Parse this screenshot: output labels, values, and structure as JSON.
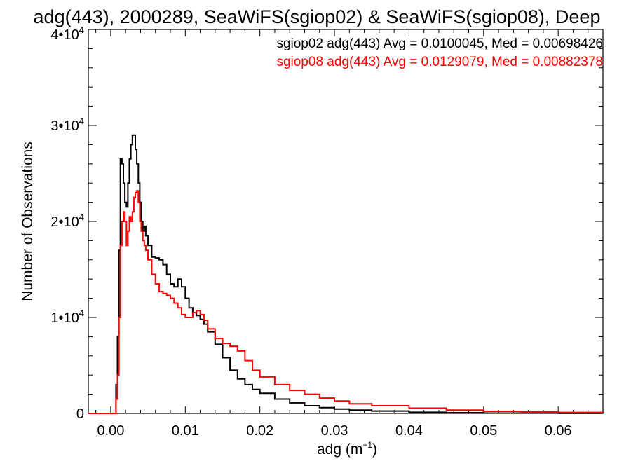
{
  "chart_data": {
    "type": "line",
    "title": "adg(443), 2000289, SeaWiFS(sgiop02) & SeaWiFS(sgiop08), Deep",
    "xlabel_main": "adg (m",
    "xlabel_exp": "−1",
    "xlabel_close": ")",
    "ylabel": "Number of Observations",
    "xlim": [
      -0.003,
      0.066
    ],
    "ylim": [
      0,
      40000
    ],
    "x_ticks": [
      0.0,
      0.01,
      0.02,
      0.03,
      0.04,
      0.05,
      0.06
    ],
    "x_tick_labels": [
      "0.00",
      "0.01",
      "0.02",
      "0.03",
      "0.04",
      "0.05",
      "0.06"
    ],
    "y_ticks": [
      0,
      10000,
      20000,
      30000,
      40000
    ],
    "y_tick_labels": [
      {
        "mant": "0",
        "exp": ""
      },
      {
        "mant": "1•10",
        "exp": "4"
      },
      {
        "mant": "2•10",
        "exp": "4"
      },
      {
        "mant": "3•10",
        "exp": "4"
      },
      {
        "mant": "4•10",
        "exp": "4"
      }
    ],
    "grid": false,
    "legend_placement": "top-right",
    "series": [
      {
        "name": "sgiop02",
        "legend_text": "sgiop02 adg(443) Avg = 0.0100045, Med = 0.00698426",
        "color": "#000000",
        "points": [
          [
            -0.003,
            0
          ],
          [
            0.0005,
            0
          ],
          [
            0.0007,
            3000
          ],
          [
            0.0009,
            8000
          ],
          [
            0.0011,
            17000
          ],
          [
            0.0013,
            26500
          ],
          [
            0.0015,
            26000
          ],
          [
            0.0017,
            24000
          ],
          [
            0.0019,
            22000
          ],
          [
            0.0021,
            21500
          ],
          [
            0.0023,
            24000
          ],
          [
            0.0025,
            26500
          ],
          [
            0.0027,
            28000
          ],
          [
            0.0029,
            29000
          ],
          [
            0.0031,
            29000
          ],
          [
            0.0033,
            27500
          ],
          [
            0.0035,
            26000
          ],
          [
            0.0037,
            24000
          ],
          [
            0.0039,
            22000
          ],
          [
            0.0041,
            20000
          ],
          [
            0.0043,
            19000
          ],
          [
            0.0045,
            19500
          ],
          [
            0.0047,
            18500
          ],
          [
            0.005,
            17500
          ],
          [
            0.0055,
            16300
          ],
          [
            0.006,
            16200
          ],
          [
            0.0065,
            16000
          ],
          [
            0.007,
            15500
          ],
          [
            0.0075,
            14500
          ],
          [
            0.008,
            13500
          ],
          [
            0.0085,
            13200
          ],
          [
            0.009,
            14000
          ],
          [
            0.0095,
            13200
          ],
          [
            0.01,
            12000
          ],
          [
            0.0105,
            11000
          ],
          [
            0.011,
            10500
          ],
          [
            0.0115,
            10200
          ],
          [
            0.012,
            9800
          ],
          [
            0.0125,
            9300
          ],
          [
            0.013,
            8500
          ],
          [
            0.014,
            7200
          ],
          [
            0.015,
            5800
          ],
          [
            0.016,
            4500
          ],
          [
            0.017,
            3600
          ],
          [
            0.018,
            3000
          ],
          [
            0.019,
            2500
          ],
          [
            0.02,
            2100
          ],
          [
            0.022,
            1500
          ],
          [
            0.024,
            1100
          ],
          [
            0.026,
            800
          ],
          [
            0.028,
            600
          ],
          [
            0.03,
            450
          ],
          [
            0.032,
            350
          ],
          [
            0.035,
            250
          ],
          [
            0.04,
            120
          ],
          [
            0.045,
            70
          ],
          [
            0.05,
            40
          ],
          [
            0.06,
            15
          ],
          [
            0.066,
            10
          ]
        ]
      },
      {
        "name": "sgiop08",
        "legend_text": "sgiop08 adg(443) Avg = 0.0129079, Med = 0.00882378",
        "color": "#ff0000",
        "points": [
          [
            -0.003,
            0
          ],
          [
            0.0005,
            0
          ],
          [
            0.0007,
            1500
          ],
          [
            0.0009,
            4000
          ],
          [
            0.0011,
            10000
          ],
          [
            0.0013,
            17500
          ],
          [
            0.0015,
            20000
          ],
          [
            0.0017,
            21000
          ],
          [
            0.0019,
            20000
          ],
          [
            0.0021,
            17500
          ],
          [
            0.0023,
            19000
          ],
          [
            0.0025,
            20500
          ],
          [
            0.0027,
            20000
          ],
          [
            0.0029,
            21000
          ],
          [
            0.0031,
            22500
          ],
          [
            0.0033,
            23000
          ],
          [
            0.0035,
            23200
          ],
          [
            0.0037,
            22000
          ],
          [
            0.0039,
            20000
          ],
          [
            0.0041,
            19000
          ],
          [
            0.0043,
            18000
          ],
          [
            0.0045,
            17500
          ],
          [
            0.0047,
            17000
          ],
          [
            0.005,
            16000
          ],
          [
            0.0055,
            14500
          ],
          [
            0.006,
            13500
          ],
          [
            0.0065,
            12700
          ],
          [
            0.007,
            12500
          ],
          [
            0.0075,
            12300
          ],
          [
            0.008,
            12000
          ],
          [
            0.0085,
            11500
          ],
          [
            0.009,
            11000
          ],
          [
            0.0095,
            10300
          ],
          [
            0.01,
            10000
          ],
          [
            0.0105,
            10000
          ],
          [
            0.011,
            10500
          ],
          [
            0.0115,
            10700
          ],
          [
            0.012,
            10300
          ],
          [
            0.0125,
            9700
          ],
          [
            0.013,
            8800
          ],
          [
            0.014,
            7800
          ],
          [
            0.015,
            7300
          ],
          [
            0.016,
            7000
          ],
          [
            0.017,
            6500
          ],
          [
            0.018,
            5500
          ],
          [
            0.019,
            4500
          ],
          [
            0.02,
            3800
          ],
          [
            0.022,
            3000
          ],
          [
            0.024,
            2400
          ],
          [
            0.026,
            2000
          ],
          [
            0.028,
            1600
          ],
          [
            0.03,
            1300
          ],
          [
            0.032,
            1000
          ],
          [
            0.035,
            800
          ],
          [
            0.04,
            550
          ],
          [
            0.045,
            350
          ],
          [
            0.05,
            220
          ],
          [
            0.055,
            150
          ],
          [
            0.06,
            100
          ],
          [
            0.066,
            60
          ]
        ]
      }
    ]
  }
}
